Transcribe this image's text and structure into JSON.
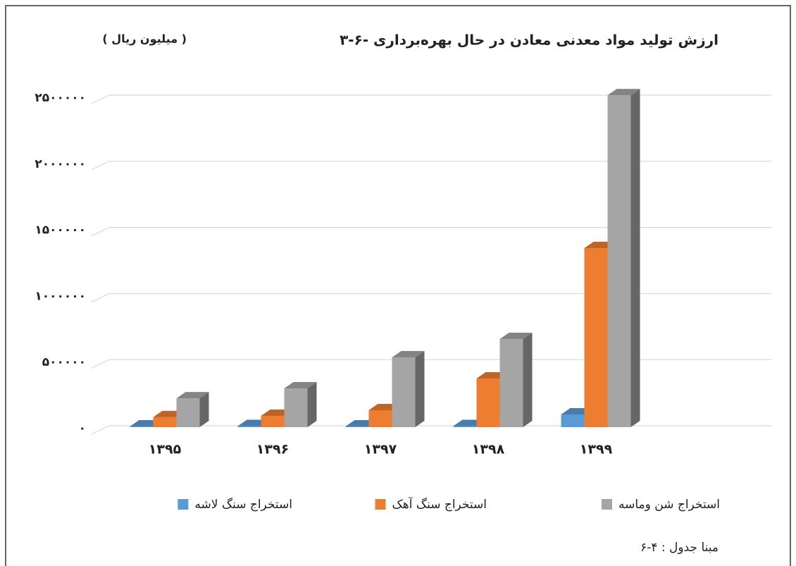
{
  "chart_data": {
    "type": "bar3d",
    "title": "۳-۶- ارزش تولید مواد معدنی معادن در حال بهره‌برداری",
    "unit_label": "( میلیون ریال )",
    "source_note": "مبنا جدول : ۴-۶",
    "categories": [
      "۱۳۹۵",
      "۱۳۹۶",
      "۱۳۹۷",
      "۱۳۹۸",
      "۱۳۹۹"
    ],
    "series": [
      {
        "name": "استخراج سنگ لاشه",
        "color": "#5b9bd5",
        "values": [
          5000,
          8000,
          5000,
          8000,
          96000
        ]
      },
      {
        "name": "استخراج سنگ آهک",
        "color": "#ed7d31",
        "values": [
          75000,
          85000,
          128000,
          368000,
          1354000
        ]
      },
      {
        "name": "استخراج شن وماسه",
        "color": "#a5a5a5",
        "values": [
          218000,
          293000,
          528000,
          666000,
          2510000
        ]
      }
    ],
    "ylim": [
      0,
      2500000
    ],
    "yticks": [
      {
        "value": 0,
        "label": "۰"
      },
      {
        "value": 500000,
        "label": "۵۰۰۰۰۰"
      },
      {
        "value": 1000000,
        "label": "۱۰۰۰۰۰۰"
      },
      {
        "value": 1500000,
        "label": "۱۵۰۰۰۰۰"
      },
      {
        "value": 2000000,
        "label": "۲۰۰۰۰۰۰"
      },
      {
        "value": 2500000,
        "label": "۲۵۰۰۰۰۰"
      }
    ],
    "grid": true
  }
}
